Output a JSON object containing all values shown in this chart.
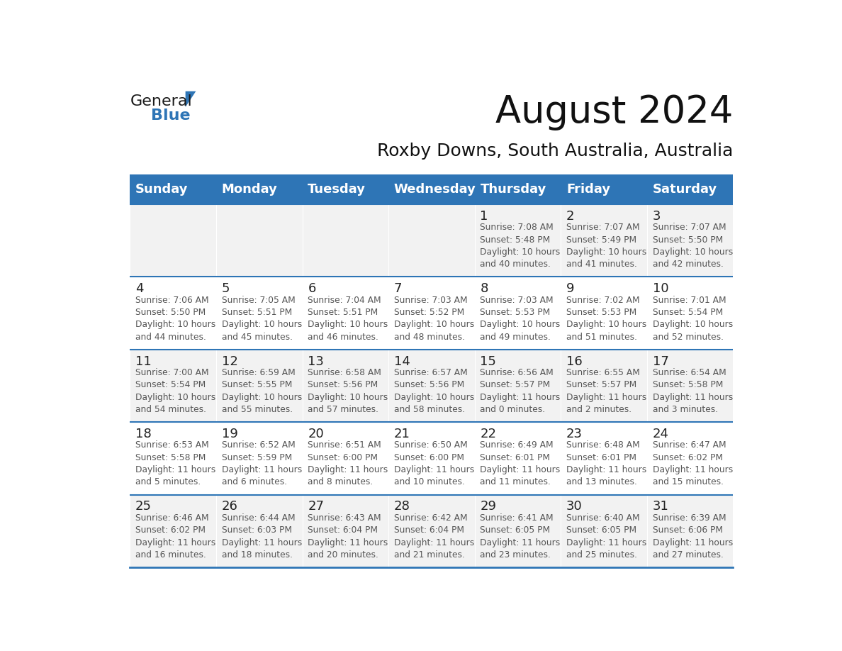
{
  "title": "August 2024",
  "subtitle": "Roxby Downs, South Australia, Australia",
  "days_of_week": [
    "Sunday",
    "Monday",
    "Tuesday",
    "Wednesday",
    "Thursday",
    "Friday",
    "Saturday"
  ],
  "header_bg": "#2E75B6",
  "header_text": "#FFFFFF",
  "cell_bg_odd": "#F2F2F2",
  "cell_bg_even": "#FFFFFF",
  "border_color": "#2E75B6",
  "day_num_color": "#222222",
  "info_text_color": "#555555",
  "logo_black": "#1a1a1a",
  "logo_blue": "#2E75B6",
  "calendar": [
    [
      null,
      null,
      null,
      null,
      {
        "day": 1,
        "sunrise": "7:08 AM",
        "sunset": "5:48 PM",
        "daylight": "10 hours and 40 minutes."
      },
      {
        "day": 2,
        "sunrise": "7:07 AM",
        "sunset": "5:49 PM",
        "daylight": "10 hours and 41 minutes."
      },
      {
        "day": 3,
        "sunrise": "7:07 AM",
        "sunset": "5:50 PM",
        "daylight": "10 hours and 42 minutes."
      }
    ],
    [
      {
        "day": 4,
        "sunrise": "7:06 AM",
        "sunset": "5:50 PM",
        "daylight": "10 hours and 44 minutes."
      },
      {
        "day": 5,
        "sunrise": "7:05 AM",
        "sunset": "5:51 PM",
        "daylight": "10 hours and 45 minutes."
      },
      {
        "day": 6,
        "sunrise": "7:04 AM",
        "sunset": "5:51 PM",
        "daylight": "10 hours and 46 minutes."
      },
      {
        "day": 7,
        "sunrise": "7:03 AM",
        "sunset": "5:52 PM",
        "daylight": "10 hours and 48 minutes."
      },
      {
        "day": 8,
        "sunrise": "7:03 AM",
        "sunset": "5:53 PM",
        "daylight": "10 hours and 49 minutes."
      },
      {
        "day": 9,
        "sunrise": "7:02 AM",
        "sunset": "5:53 PM",
        "daylight": "10 hours and 51 minutes."
      },
      {
        "day": 10,
        "sunrise": "7:01 AM",
        "sunset": "5:54 PM",
        "daylight": "10 hours and 52 minutes."
      }
    ],
    [
      {
        "day": 11,
        "sunrise": "7:00 AM",
        "sunset": "5:54 PM",
        "daylight": "10 hours and 54 minutes."
      },
      {
        "day": 12,
        "sunrise": "6:59 AM",
        "sunset": "5:55 PM",
        "daylight": "10 hours and 55 minutes."
      },
      {
        "day": 13,
        "sunrise": "6:58 AM",
        "sunset": "5:56 PM",
        "daylight": "10 hours and 57 minutes."
      },
      {
        "day": 14,
        "sunrise": "6:57 AM",
        "sunset": "5:56 PM",
        "daylight": "10 hours and 58 minutes."
      },
      {
        "day": 15,
        "sunrise": "6:56 AM",
        "sunset": "5:57 PM",
        "daylight": "11 hours and 0 minutes."
      },
      {
        "day": 16,
        "sunrise": "6:55 AM",
        "sunset": "5:57 PM",
        "daylight": "11 hours and 2 minutes."
      },
      {
        "day": 17,
        "sunrise": "6:54 AM",
        "sunset": "5:58 PM",
        "daylight": "11 hours and 3 minutes."
      }
    ],
    [
      {
        "day": 18,
        "sunrise": "6:53 AM",
        "sunset": "5:58 PM",
        "daylight": "11 hours and 5 minutes."
      },
      {
        "day": 19,
        "sunrise": "6:52 AM",
        "sunset": "5:59 PM",
        "daylight": "11 hours and 6 minutes."
      },
      {
        "day": 20,
        "sunrise": "6:51 AM",
        "sunset": "6:00 PM",
        "daylight": "11 hours and 8 minutes."
      },
      {
        "day": 21,
        "sunrise": "6:50 AM",
        "sunset": "6:00 PM",
        "daylight": "11 hours and 10 minutes."
      },
      {
        "day": 22,
        "sunrise": "6:49 AM",
        "sunset": "6:01 PM",
        "daylight": "11 hours and 11 minutes."
      },
      {
        "day": 23,
        "sunrise": "6:48 AM",
        "sunset": "6:01 PM",
        "daylight": "11 hours and 13 minutes."
      },
      {
        "day": 24,
        "sunrise": "6:47 AM",
        "sunset": "6:02 PM",
        "daylight": "11 hours and 15 minutes."
      }
    ],
    [
      {
        "day": 25,
        "sunrise": "6:46 AM",
        "sunset": "6:02 PM",
        "daylight": "11 hours and 16 minutes."
      },
      {
        "day": 26,
        "sunrise": "6:44 AM",
        "sunset": "6:03 PM",
        "daylight": "11 hours and 18 minutes."
      },
      {
        "day": 27,
        "sunrise": "6:43 AM",
        "sunset": "6:04 PM",
        "daylight": "11 hours and 20 minutes."
      },
      {
        "day": 28,
        "sunrise": "6:42 AM",
        "sunset": "6:04 PM",
        "daylight": "11 hours and 21 minutes."
      },
      {
        "day": 29,
        "sunrise": "6:41 AM",
        "sunset": "6:05 PM",
        "daylight": "11 hours and 23 minutes."
      },
      {
        "day": 30,
        "sunrise": "6:40 AM",
        "sunset": "6:05 PM",
        "daylight": "11 hours and 25 minutes."
      },
      {
        "day": 31,
        "sunrise": "6:39 AM",
        "sunset": "6:06 PM",
        "daylight": "11 hours and 27 minutes."
      }
    ]
  ]
}
